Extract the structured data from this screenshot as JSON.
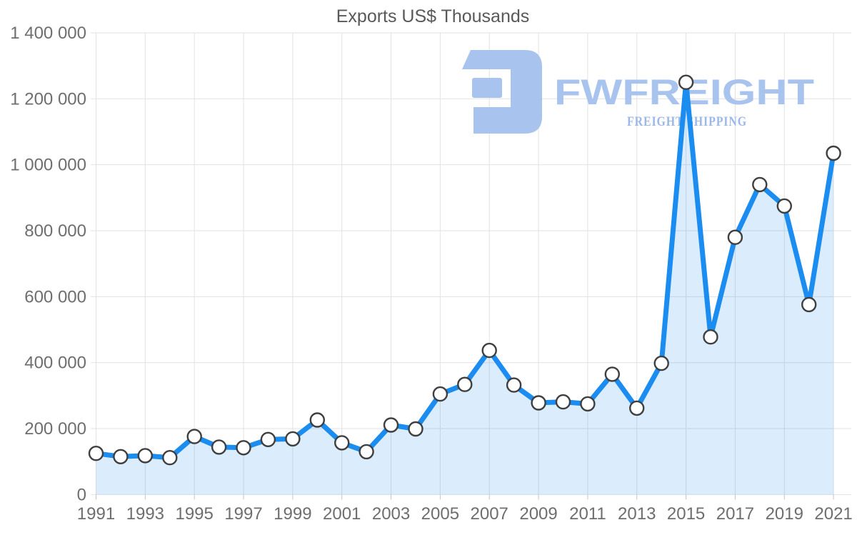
{
  "title": "Exports US$ Thousands",
  "watermark": {
    "brand": "FWFREIGHT",
    "tagline": "FREIGHT SHIPPING",
    "brand_color": "#a9c3ef",
    "tagline_color": "#9cb8ea"
  },
  "chart_data": {
    "type": "area",
    "title": "Exports US$ Thousands",
    "xlabel": "",
    "ylabel": "",
    "x": [
      1991,
      1992,
      1993,
      1994,
      1995,
      1996,
      1997,
      1998,
      1999,
      2000,
      2001,
      2002,
      2003,
      2004,
      2005,
      2006,
      2007,
      2008,
      2009,
      2010,
      2011,
      2012,
      2013,
      2014,
      2015,
      2016,
      2017,
      2018,
      2019,
      2020,
      2021
    ],
    "series": [
      {
        "name": "Exports US$ Thousands",
        "values": [
          125000,
          115000,
          118000,
          112000,
          176000,
          144000,
          142000,
          167000,
          169000,
          226000,
          157000,
          130000,
          211000,
          199000,
          305000,
          334000,
          437000,
          332000,
          278000,
          281000,
          275000,
          365000,
          262000,
          398000,
          1250000,
          478000,
          780000,
          940000,
          875000,
          576000,
          1035000
        ]
      }
    ],
    "ylim": [
      0,
      1400000
    ],
    "y_ticks": [
      0,
      200000,
      400000,
      600000,
      800000,
      1000000,
      1200000,
      1400000
    ],
    "x_tick_labels": [
      "1991",
      "1993",
      "1995",
      "1997",
      "1999",
      "2001",
      "2003",
      "2005",
      "2007",
      "2009",
      "2011",
      "2013",
      "2015",
      "2017",
      "2019",
      "2021"
    ],
    "grid": true,
    "legend": "none",
    "marker": "white-circle-dark-stroke",
    "style": {
      "line_color": "#1b8cf0",
      "fill_color": "rgba(30,140,240,0.16)",
      "marker_fill": "#ffffff",
      "marker_stroke": "#3f3f3f",
      "grid_color": "#e2e2e2",
      "tick_color": "#c4c4c4",
      "axis_text_color": "#6e6e6e",
      "title_color": "#595959"
    }
  }
}
